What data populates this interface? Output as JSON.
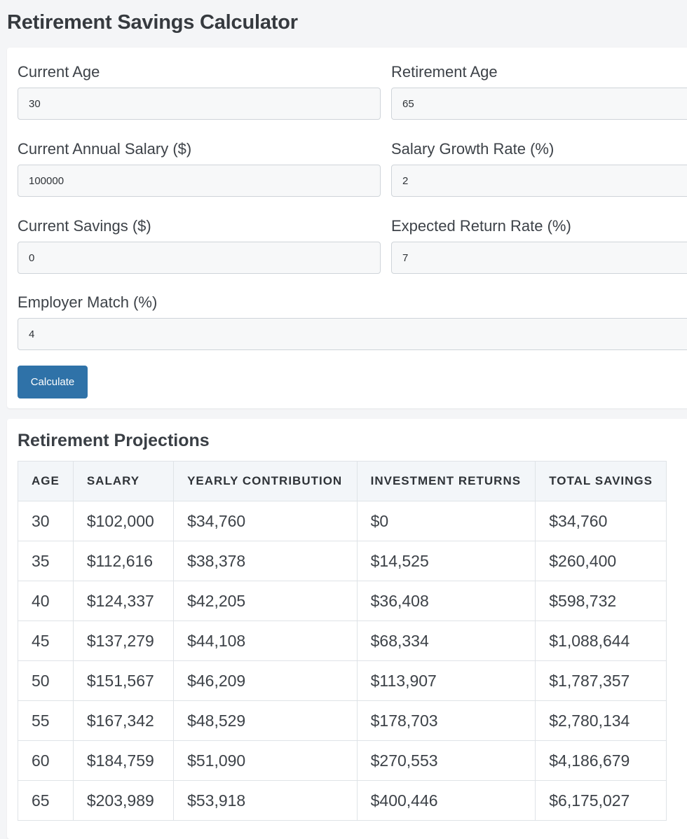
{
  "page": {
    "title": "Retirement Savings Calculator"
  },
  "form": {
    "current_age": {
      "label": "Current Age",
      "value": "30"
    },
    "retirement_age": {
      "label": "Retirement Age",
      "value": "65"
    },
    "current_salary": {
      "label": "Current Annual Salary ($)",
      "value": "100000"
    },
    "salary_growth": {
      "label": "Salary Growth Rate (%)",
      "value": "2"
    },
    "current_savings": {
      "label": "Current Savings ($)",
      "value": "0"
    },
    "return_rate": {
      "label": "Expected Return Rate (%)",
      "value": "7"
    },
    "employer_match": {
      "label": "Employer Match (%)",
      "value": "4"
    },
    "calculate_label": "Calculate"
  },
  "results": {
    "title": "Retirement Projections",
    "columns": [
      "AGE",
      "SALARY",
      "YEARLY CONTRIBUTION",
      "INVESTMENT RETURNS",
      "TOTAL SAVINGS"
    ],
    "rows": [
      [
        "30",
        "$102,000",
        "$34,760",
        "$0",
        "$34,760"
      ],
      [
        "35",
        "$112,616",
        "$38,378",
        "$14,525",
        "$260,400"
      ],
      [
        "40",
        "$124,337",
        "$42,205",
        "$36,408",
        "$598,732"
      ],
      [
        "45",
        "$137,279",
        "$44,108",
        "$68,334",
        "$1,088,644"
      ],
      [
        "50",
        "$151,567",
        "$46,209",
        "$113,907",
        "$1,787,357"
      ],
      [
        "55",
        "$167,342",
        "$48,529",
        "$178,703",
        "$2,780,134"
      ],
      [
        "60",
        "$184,759",
        "$51,090",
        "$270,553",
        "$4,186,679"
      ],
      [
        "65",
        "$203,989",
        "$53,918",
        "$400,446",
        "$6,175,027"
      ]
    ]
  },
  "colors": {
    "accent": "#2f72a8",
    "page_background": "#f4f5f7",
    "card_background": "#ffffff",
    "table_header_background": "#f3f6f9"
  }
}
